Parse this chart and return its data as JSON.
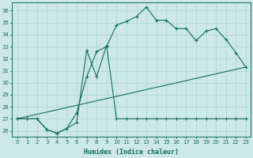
{
  "xlabel": "Humidex (Indice chaleur)",
  "xlim": [
    -0.5,
    23.5
  ],
  "ylim": [
    25.5,
    36.7
  ],
  "yticks": [
    26,
    27,
    28,
    29,
    30,
    31,
    32,
    33,
    34,
    35,
    36
  ],
  "xticks": [
    0,
    1,
    2,
    3,
    4,
    5,
    6,
    7,
    8,
    9,
    10,
    11,
    12,
    13,
    14,
    15,
    16,
    17,
    18,
    19,
    20,
    21,
    22,
    23
  ],
  "bg_color": "#cce8e8",
  "line_color": "#1a6b5a",
  "grid_color": "#b0d8d8",
  "line_main": {
    "x": [
      0,
      1,
      2,
      3,
      4,
      5,
      6,
      7,
      8,
      9,
      10,
      11,
      12,
      13,
      14,
      15,
      16,
      17,
      18,
      19,
      20,
      21,
      22,
      23
    ],
    "y": [
      27.0,
      27.0,
      27.0,
      26.1,
      25.8,
      26.2,
      27.5,
      30.5,
      32.6,
      33.0,
      34.8,
      35.1,
      35.5,
      36.3,
      35.2,
      35.2,
      34.5,
      34.5,
      33.5,
      34.3,
      34.5,
      33.6,
      32.5,
      31.3
    ]
  },
  "line_zigzag": {
    "x": [
      0,
      1,
      2,
      3,
      4,
      5,
      6,
      7,
      8,
      9,
      10,
      11,
      12,
      13,
      14,
      15,
      16,
      17,
      18,
      19,
      20,
      21,
      22,
      23
    ],
    "y": [
      27.0,
      27.0,
      27.0,
      26.1,
      25.8,
      26.2,
      26.7,
      32.7,
      30.5,
      33.1,
      27.0,
      27.0,
      27.0,
      27.0,
      27.0,
      27.0,
      27.0,
      27.0,
      27.0,
      27.0,
      27.0,
      27.0,
      27.0,
      27.0
    ]
  },
  "line_trend": {
    "x": [
      0,
      23
    ],
    "y": [
      27.0,
      31.3
    ]
  }
}
